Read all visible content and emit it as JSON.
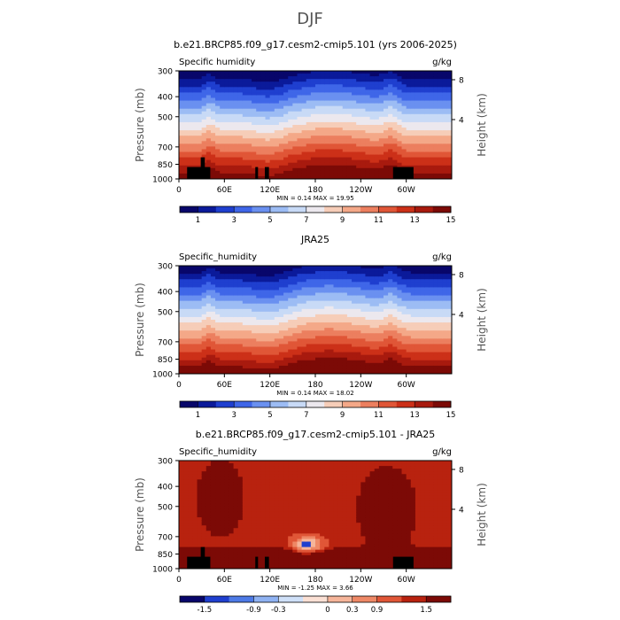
{
  "suptitle": "DJF",
  "x_ticks": [
    "0",
    "60E",
    "120E",
    "180",
    "120W",
    "60W"
  ],
  "y_ticks": [
    "300",
    "400",
    "500",
    "700",
    "850",
    "1000"
  ],
  "height_ticks": [
    "8",
    "4"
  ],
  "ylabel": "Pressure (mb)",
  "ylabel_right": "Height (km)",
  "panels": [
    {
      "title": "b.e21.BRCP85.f09_g17.cesm2-cmip5.101 (yrs 2006-2025)",
      "left_label": "Specific humidity",
      "right_label": "g/kg",
      "stats": "MIN =   0.14   MAX =   19.95",
      "colorbar_labels": [
        "1",
        "3",
        "5",
        "7",
        "9",
        "11",
        "13",
        "15"
      ]
    },
    {
      "title": "JRA25",
      "left_label": "Specific_humidity",
      "right_label": "g/kg",
      "stats": "MIN =   0.14   MAX =   18.02",
      "colorbar_labels": [
        "1",
        "3",
        "5",
        "7",
        "9",
        "11",
        "13",
        "15"
      ]
    },
    {
      "title": "b.e21.BRCP85.f09_g17.cesm2-cmip5.101 - JRA25",
      "left_label": "Specific_humidity",
      "right_label": "g/kg",
      "stats": "MIN =  -1.25   MAX =   3.66",
      "colorbar_labels": [
        "-1.5",
        "-0.9",
        "-0.3",
        "0",
        "0.3",
        "0.9",
        "1.5"
      ]
    }
  ],
  "chart_data": [
    {
      "type": "heatmap",
      "title": "b.e21.BRCP85.f09_g17.cesm2-cmip5.101 (yrs 2006-2025)",
      "variable": "Specific humidity",
      "units": "g/kg",
      "x": [
        "0",
        "60E",
        "120E",
        "180",
        "120W",
        "60W"
      ],
      "y": [
        300,
        400,
        500,
        700,
        850,
        1000
      ],
      "min": 0.14,
      "max": 19.95,
      "colorbar_levels": [
        1,
        3,
        5,
        7,
        9,
        11,
        13,
        15
      ],
      "colors": [
        "#08066a",
        "#0b1a9a",
        "#1f3fcf",
        "#3f66e8",
        "#6a90f0",
        "#9cbcf4",
        "#c8daf6",
        "#ece8ee",
        "#f6cdb8",
        "#f4a888",
        "#ec7f5f",
        "#e05637",
        "#cc3018",
        "#a81a0e",
        "#7c0a06"
      ]
    },
    {
      "type": "heatmap",
      "title": "JRA25",
      "variable": "Specific_humidity",
      "units": "g/kg",
      "x": [
        "0",
        "60E",
        "120E",
        "180",
        "120W",
        "60W"
      ],
      "y": [
        300,
        400,
        500,
        700,
        850,
        1000
      ],
      "min": 0.14,
      "max": 18.02,
      "colorbar_levels": [
        1,
        3,
        5,
        7,
        9,
        11,
        13,
        15
      ],
      "colors": [
        "#08066a",
        "#0b1a9a",
        "#1f3fcf",
        "#3f66e8",
        "#6a90f0",
        "#9cbcf4",
        "#c8daf6",
        "#ece8ee",
        "#f6cdb8",
        "#f4a888",
        "#ec7f5f",
        "#e05637",
        "#cc3018",
        "#a81a0e",
        "#7c0a06"
      ]
    },
    {
      "type": "heatmap",
      "title": "b.e21.BRCP85.f09_g17.cesm2-cmip5.101 - JRA25",
      "variable": "Specific_humidity",
      "units": "g/kg",
      "x": [
        "0",
        "60E",
        "120E",
        "180",
        "120W",
        "60W"
      ],
      "y": [
        300,
        400,
        500,
        700,
        850,
        1000
      ],
      "min": -1.25,
      "max": 3.66,
      "colorbar_levels": [
        -1.5,
        -0.9,
        -0.3,
        0,
        0.3,
        0.9,
        1.5
      ],
      "colors": [
        "#08066a",
        "#1f3fcf",
        "#4d7ae6",
        "#8fb2f2",
        "#cfe0f8",
        "#fbe0d4",
        "#f6b59a",
        "#ee8866",
        "#e05637",
        "#b8220f",
        "#7c0a06"
      ]
    }
  ]
}
